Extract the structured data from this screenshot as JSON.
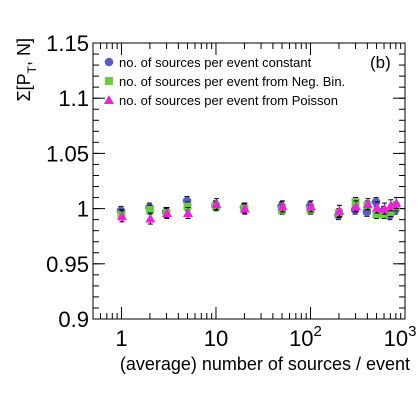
{
  "chart_data": {
    "type": "scatter",
    "title": "",
    "panel_tag": "(b)",
    "ylabel_main": "Σ[P",
    "ylabel_sub": "T",
    "ylabel_rest": ", N]",
    "xlabel": "(average) number of sources / event",
    "x_scale": "log",
    "xlim": [
      0.5,
      1000
    ],
    "ylim": [
      0.9,
      1.15
    ],
    "y_ticks": [
      "0.9",
      "0.95",
      "1",
      "1.05",
      "1.1",
      "1.15"
    ],
    "y_tick_values": [
      0.9,
      0.95,
      1.0,
      1.05,
      1.1,
      1.15
    ],
    "x_ticks": [
      {
        "value": 1,
        "base": "1",
        "exp": ""
      },
      {
        "value": 10,
        "base": "10",
        "exp": ""
      },
      {
        "value": 100,
        "base": "10",
        "exp": "2"
      },
      {
        "value": 1000,
        "base": "10",
        "exp": "3"
      }
    ],
    "legend_position": "top-left",
    "series": [
      {
        "name": "no. of sources per event constant",
        "marker": "circle",
        "color": "#5b5bc8",
        "points": [
          {
            "x": 1,
            "y": 0.998,
            "err": 0.004
          },
          {
            "x": 2,
            "y": 1.001,
            "err": 0.004
          },
          {
            "x": 3,
            "y": 0.997,
            "err": 0.004
          },
          {
            "x": 5,
            "y": 1.007,
            "err": 0.004
          },
          {
            "x": 10,
            "y": 1.003,
            "err": 0.004
          },
          {
            "x": 20,
            "y": 1.001,
            "err": 0.004
          },
          {
            "x": 50,
            "y": 1.002,
            "err": 0.004
          },
          {
            "x": 100,
            "y": 1.002,
            "err": 0.004
          },
          {
            "x": 200,
            "y": 0.994,
            "err": 0.004
          },
          {
            "x": 300,
            "y": 0.999,
            "err": 0.004
          },
          {
            "x": 400,
            "y": 0.997,
            "err": 0.004
          },
          {
            "x": 500,
            "y": 1.006,
            "err": 0.004
          },
          {
            "x": 600,
            "y": 0.998,
            "err": 0.004
          },
          {
            "x": 700,
            "y": 0.994,
            "err": 0.004
          },
          {
            "x": 800,
            "y": 0.999,
            "err": 0.004
          }
        ]
      },
      {
        "name": "no. of sources per event from Neg. Bin.",
        "marker": "square",
        "color": "#66cc44",
        "points": [
          {
            "x": 1,
            "y": 0.995,
            "err": 0.004
          },
          {
            "x": 2,
            "y": 0.999,
            "err": 0.004
          },
          {
            "x": 3,
            "y": 0.996,
            "err": 0.004
          },
          {
            "x": 5,
            "y": 1.002,
            "err": 0.004
          },
          {
            "x": 10,
            "y": 1.002,
            "err": 0.004
          },
          {
            "x": 20,
            "y": 1.0,
            "err": 0.004
          },
          {
            "x": 50,
            "y": 0.999,
            "err": 0.004
          },
          {
            "x": 100,
            "y": 0.999,
            "err": 0.004
          },
          {
            "x": 200,
            "y": 0.996,
            "err": 0.004
          },
          {
            "x": 300,
            "y": 1.006,
            "err": 0.004
          },
          {
            "x": 400,
            "y": 1.003,
            "err": 0.004
          },
          {
            "x": 500,
            "y": 0.995,
            "err": 0.004
          },
          {
            "x": 600,
            "y": 0.995,
            "err": 0.004
          },
          {
            "x": 700,
            "y": 0.997,
            "err": 0.004
          },
          {
            "x": 800,
            "y": 1.002,
            "err": 0.004
          }
        ]
      },
      {
        "name": "no. of sources per event from Poisson",
        "marker": "triangle",
        "color": "#ee22dd",
        "points": [
          {
            "x": 1,
            "y": 0.993,
            "err": 0.005
          },
          {
            "x": 2,
            "y": 0.991,
            "err": 0.005
          },
          {
            "x": 3,
            "y": 0.996,
            "err": 0.005
          },
          {
            "x": 5,
            "y": 0.996,
            "err": 0.005
          },
          {
            "x": 10,
            "y": 1.004,
            "err": 0.005
          },
          {
            "x": 20,
            "y": 1.0,
            "err": 0.005
          },
          {
            "x": 50,
            "y": 1.002,
            "err": 0.005
          },
          {
            "x": 100,
            "y": 1.002,
            "err": 0.005
          },
          {
            "x": 200,
            "y": 0.998,
            "err": 0.005
          },
          {
            "x": 300,
            "y": 1.002,
            "err": 0.005
          },
          {
            "x": 400,
            "y": 1.004,
            "err": 0.005
          },
          {
            "x": 500,
            "y": 1.001,
            "err": 0.005
          },
          {
            "x": 600,
            "y": 1.0,
            "err": 0.005
          },
          {
            "x": 700,
            "y": 1.003,
            "err": 0.005
          },
          {
            "x": 800,
            "y": 1.005,
            "err": 0.005
          }
        ]
      }
    ]
  }
}
